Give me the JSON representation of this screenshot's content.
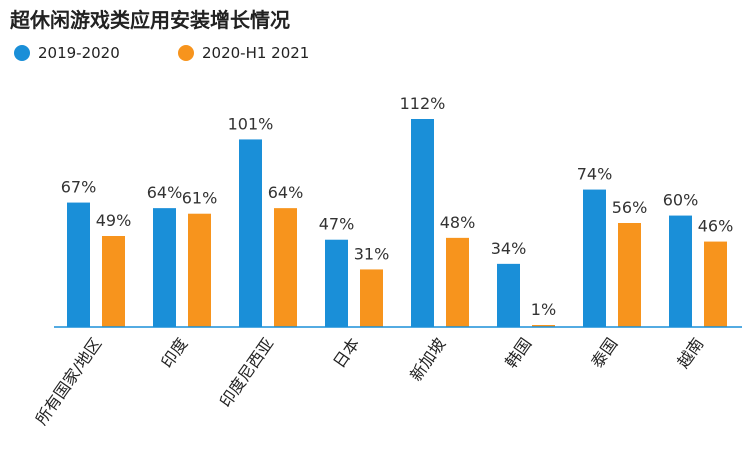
{
  "chart_data": {
    "type": "bar",
    "title": "超休闲游戏类应用安装增长情况",
    "categories": [
      "所有国家/地区",
      "印度",
      "印度尼西亚",
      "日本",
      "新加坡",
      "韩国",
      "泰国",
      "越南"
    ],
    "series": [
      {
        "name": "2019-2020",
        "color": "#1a8fd8",
        "values": [
          67,
          64,
          101,
          47,
          112,
          34,
          74,
          60
        ],
        "labels": [
          "67%",
          "64%",
          "101%",
          "47%",
          "112%",
          "34%",
          "74%",
          "60%"
        ]
      },
      {
        "name": "2020-H1 2021",
        "color": "#f7941d",
        "values": [
          49,
          61,
          64,
          31,
          48,
          1,
          56,
          46
        ],
        "labels": [
          "49%",
          "61%",
          "64%",
          "31%",
          "48%",
          "1%",
          "56%",
          "46%"
        ]
      }
    ],
    "ylim": [
      0,
      112
    ],
    "legend": "top-left",
    "grid": false
  }
}
